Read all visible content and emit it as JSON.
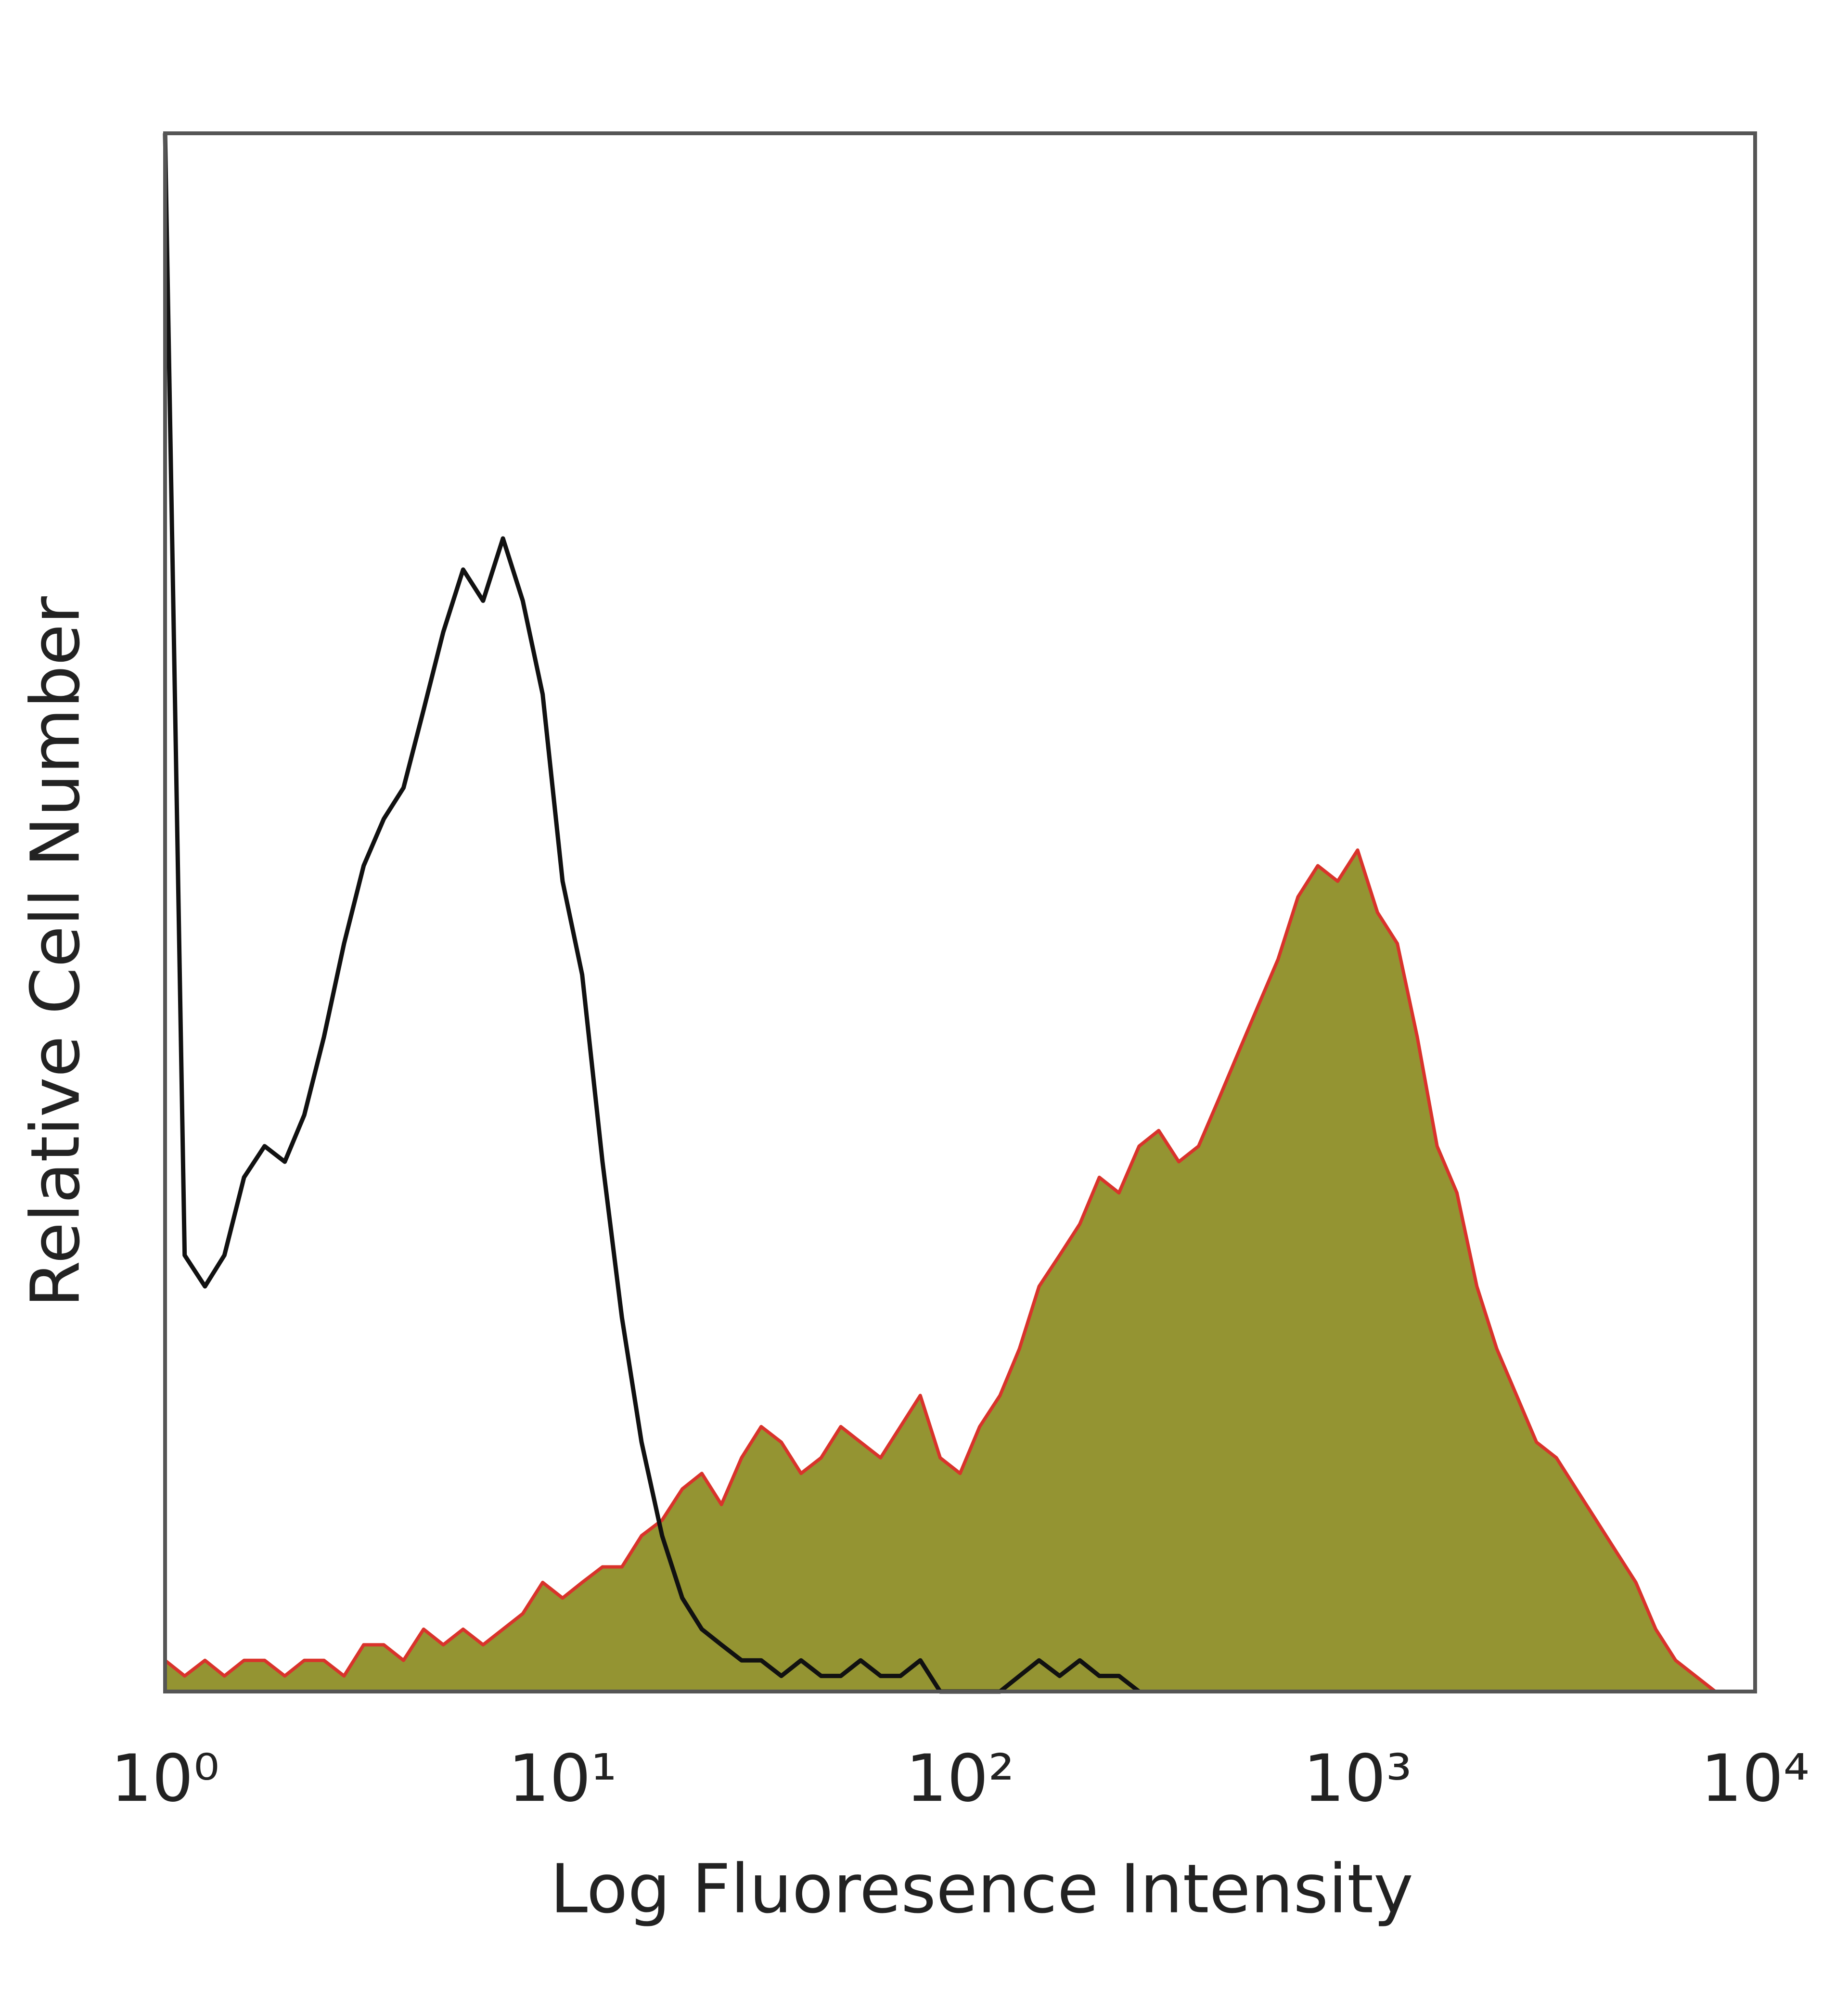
{
  "chart_data": {
    "type": "histogram-overlay",
    "xlabel": "Log Fluoresence Intensity",
    "ylabel": "Relative Cell Number",
    "xscale": "log",
    "xlim": [
      1,
      10000
    ],
    "xticks": [
      {
        "value": 1,
        "label": "10⁰"
      },
      {
        "value": 10,
        "label": "10¹"
      },
      {
        "value": 100,
        "label": "10²"
      },
      {
        "value": 1000,
        "label": "10³"
      },
      {
        "value": 10000,
        "label": "10⁴"
      }
    ],
    "ylim": [
      0,
      100
    ],
    "x": [
      1,
      1.12,
      1.26,
      1.41,
      1.58,
      1.78,
      2,
      2.24,
      2.51,
      2.82,
      3.16,
      3.55,
      3.98,
      4.47,
      5.01,
      5.62,
      6.31,
      7.08,
      7.94,
      8.91,
      10,
      11.2,
      12.6,
      14.1,
      15.8,
      17.8,
      20,
      22.4,
      25.1,
      28.2,
      31.6,
      35.5,
      39.8,
      44.7,
      50.1,
      56.2,
      63.1,
      70.8,
      79.4,
      89.1,
      100,
      112,
      126,
      141,
      158,
      178,
      200,
      224,
      251,
      282,
      316,
      355,
      398,
      447,
      501,
      562,
      631,
      708,
      794,
      891,
      1000,
      1122,
      1259,
      1413,
      1585,
      1778,
      1995,
      2239,
      2512,
      2818,
      3162,
      3548,
      3981,
      4467,
      5012,
      5623,
      6310,
      7079,
      7943
    ],
    "series": [
      {
        "color": "#949432",
        "edge_color": "#d9332b",
        "filled": true,
        "values": [
          2,
          1,
          2,
          1,
          2,
          2,
          1,
          2,
          2,
          1,
          3,
          3,
          2,
          4,
          3,
          4,
          3,
          4,
          5,
          7,
          6,
          7,
          8,
          8,
          10,
          11,
          13,
          14,
          12,
          15,
          17,
          16,
          14,
          15,
          17,
          16,
          15,
          17,
          19,
          15,
          14,
          17,
          19,
          22,
          26,
          28,
          30,
          33,
          32,
          35,
          36,
          34,
          35,
          38,
          41,
          44,
          47,
          51,
          53,
          52,
          54,
          50,
          48,
          42,
          35,
          32,
          26,
          22,
          19,
          16,
          15,
          13,
          11,
          9,
          7,
          4,
          2,
          1,
          0
        ]
      },
      {
        "color": "#111111",
        "filled": false,
        "values": [
          100,
          28,
          26,
          28,
          33,
          35,
          34,
          37,
          42,
          48,
          53,
          56,
          58,
          63,
          68,
          72,
          70,
          74,
          70,
          64,
          52,
          46,
          34,
          24,
          16,
          10,
          6,
          4,
          3,
          2,
          2,
          1,
          2,
          1,
          1,
          2,
          1,
          1,
          2,
          0,
          0,
          0,
          0,
          1,
          2,
          1,
          2,
          1,
          1,
          0,
          null,
          null,
          null,
          null,
          null,
          null,
          null,
          null,
          null,
          null,
          null,
          null,
          null,
          null,
          null,
          null,
          null,
          null,
          null,
          null,
          null,
          null,
          null,
          null,
          null,
          null,
          null,
          null,
          null
        ]
      }
    ]
  }
}
